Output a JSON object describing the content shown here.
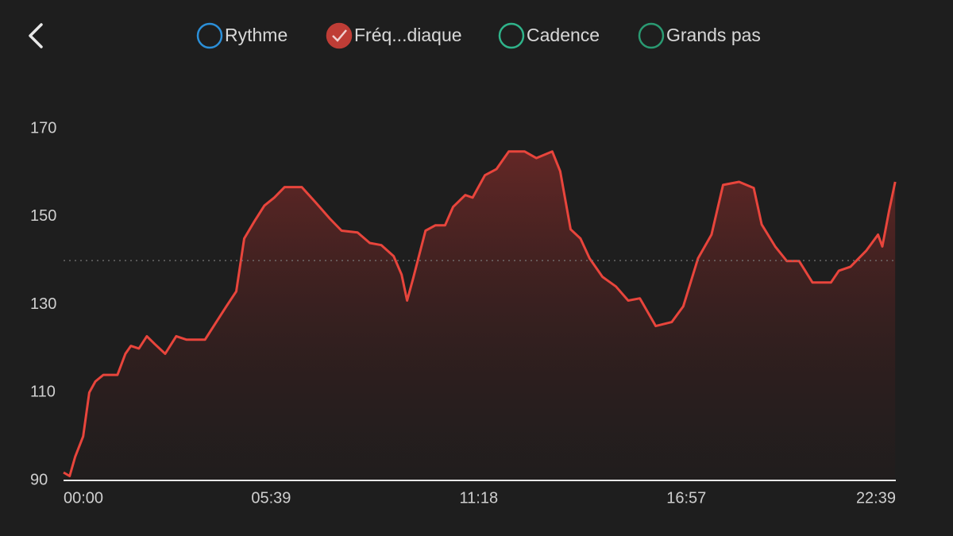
{
  "chart_data": {
    "type": "line",
    "series": [
      {
        "name": "Rythme",
        "color": "#2b8fd8",
        "checked": false
      },
      {
        "name": "Fréq...diaque",
        "color": "#e8453c",
        "checked": true,
        "values": [
          91.8,
          91,
          95.4,
          100,
          110,
          112.5,
          114,
          114,
          118.8,
          120.6,
          120,
          122.8,
          121,
          118.8,
          122.8,
          122,
          122,
          125.5,
          129.6,
          133,
          145,
          149,
          152.5,
          154.3,
          156.7,
          156.7,
          153,
          149.5,
          146.8,
          146.4,
          144,
          143.5,
          141,
          136.8,
          130.9,
          136,
          146.8,
          148,
          148,
          152.2,
          154.9,
          154.3,
          159.4,
          160.8,
          164.8,
          164.8,
          163.3,
          164.8,
          160.3,
          147.1,
          145,
          140.5,
          136.3,
          134.1,
          130.9,
          131.4,
          125.1,
          126,
          129.6,
          140.5,
          145.9,
          157.2,
          157.9,
          156.5,
          148.2,
          143.2,
          139.9,
          139.9,
          135,
          135,
          137.7,
          138.6,
          142.3,
          145.9,
          143.2,
          151.3,
          157.9
        ]
      },
      {
        "name": "Cadence",
        "color": "#2fb38a",
        "checked": false
      },
      {
        "name": "Grands pas",
        "color": "#2a9a72",
        "checked": false
      }
    ],
    "x": [
      0,
      10,
      19,
      32,
      42,
      52,
      65,
      88,
      101,
      110,
      123,
      136,
      149,
      166,
      184,
      201,
      231,
      247,
      266,
      282,
      295,
      312,
      328,
      344,
      361,
      389,
      413,
      435,
      454,
      480,
      500,
      519,
      539,
      552,
      561,
      571,
      591,
      607,
      623,
      636,
      656,
      668,
      688,
      707,
      727,
      753,
      772,
      798,
      811,
      828,
      844,
      859,
      880,
      902,
      922,
      941,
      967,
      993,
      1012,
      1036,
      1058,
      1077,
      1103,
      1127,
      1140,
      1162,
      1181,
      1201,
      1223,
      1253,
      1266,
      1285,
      1311,
      1330,
      1337,
      1348,
      1358
    ],
    "xlim": [
      0,
      1359
    ],
    "xticks": [
      {
        "value": 0,
        "label": "00:00"
      },
      {
        "value": 339,
        "label": "05:39"
      },
      {
        "value": 678,
        "label": "11:18"
      },
      {
        "value": 1017,
        "label": "16:57"
      },
      {
        "value": 1359,
        "label": "22:39"
      }
    ],
    "ylim": [
      90,
      170
    ],
    "yticks": [
      90,
      110,
      130,
      150,
      170
    ],
    "reference_line": 140,
    "grid": false
  }
}
